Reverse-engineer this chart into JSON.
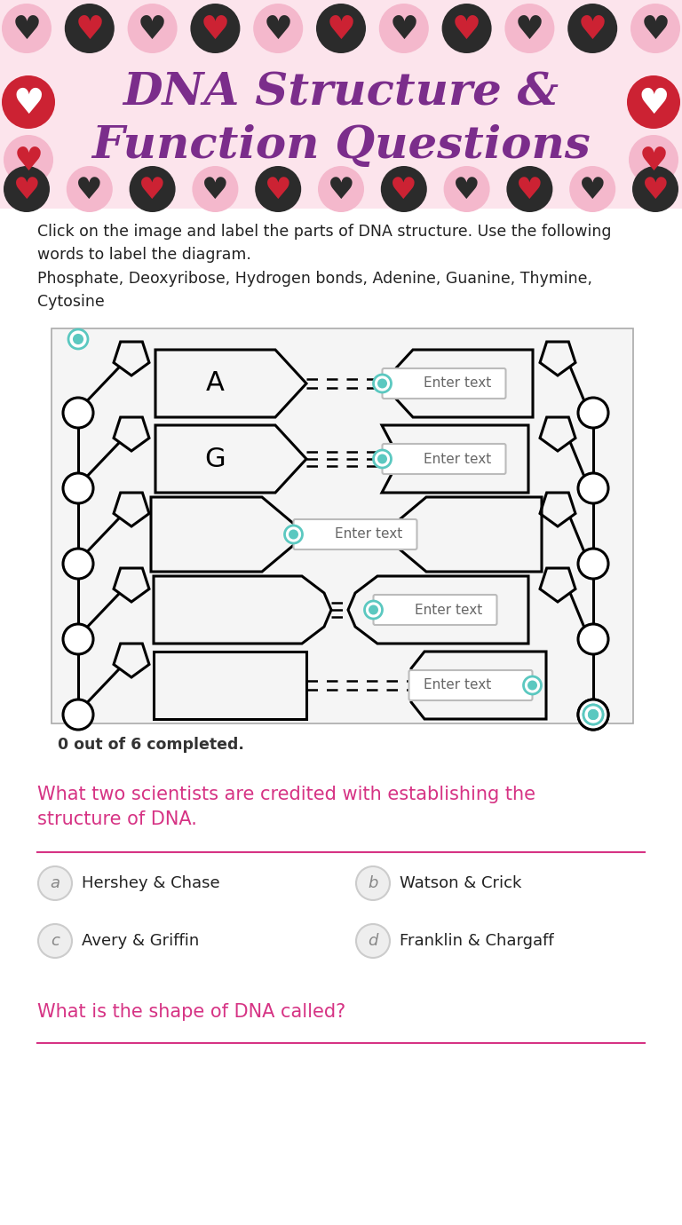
{
  "title_line1": "DNA Structure &",
  "title_line2": "Function Questions",
  "title_color": "#7B2D8B",
  "bg_color": "#ffffff",
  "header_bg": "#fce4ec",
  "instruction_text": "Click on the image and label the parts of DNA structure. Use the following\nwords to label the diagram.",
  "words_text": "Phosphate, Deoxyribose, Hydrogen bonds, Adenine, Guanine, Thymine,\nCytosine",
  "enter_text": "Enter text",
  "completed_text": "0 out of 6 completed.",
  "question1_line1": "What two scientists are credited with establishing the",
  "question1_line2": "structure of DNA.",
  "question1_color": "#d63384",
  "answers": [
    {
      "letter": "a",
      "text": "Hershey & Chase"
    },
    {
      "letter": "b",
      "text": "Watson & Crick"
    },
    {
      "letter": "c",
      "text": "Avery & Griffin"
    },
    {
      "letter": "d",
      "text": "Franklin & Chargaff"
    }
  ],
  "question2": "What is the shape of DNA called?",
  "teal_color": "#5bc8c0",
  "teal_dark": "#3a9e96",
  "divider_color": "#d63384",
  "lw": 2.2
}
